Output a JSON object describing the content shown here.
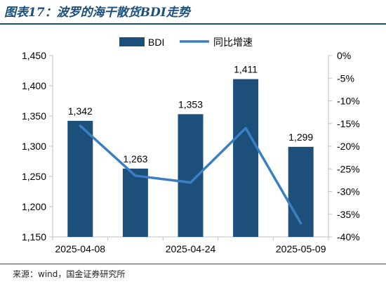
{
  "figure": {
    "title": "图表17：波罗的海干散货BDI走势",
    "source": "来源：wind，国金证券研究所"
  },
  "colors": {
    "bar": "#1c4f7a",
    "line": "#3a7fc4",
    "title": "#1c4f7a",
    "axis": "#bfbfbf",
    "text": "#000000"
  },
  "chart_data": {
    "type": "bar",
    "categories": [
      "2025-04-08",
      "",
      "2025-04-24",
      "",
      "2025-05-09"
    ],
    "x_tick_labels": [
      "2025-04-08",
      "2025-04-24",
      "2025-05-09"
    ],
    "series": [
      {
        "name": "BDI",
        "type": "bar",
        "axis": "left",
        "values": [
          1342,
          1263,
          1353,
          1411,
          1299
        ],
        "data_labels": [
          "1,342",
          "1,263",
          "1,353",
          "1,411",
          "1,299"
        ]
      },
      {
        "name": "同比增速",
        "type": "line",
        "axis": "right",
        "values": [
          -15.5,
          -26.5,
          -28,
          -16,
          -37
        ]
      }
    ],
    "y_left": {
      "ylim": [
        1150,
        1450
      ],
      "ticks": [
        1150,
        1200,
        1250,
        1300,
        1350,
        1400,
        1450
      ],
      "tick_labels": [
        "1,150",
        "1,200",
        "1,250",
        "1,300",
        "1,350",
        "1,400",
        "1,450"
      ]
    },
    "y_right": {
      "ylim": [
        -40,
        0
      ],
      "ticks": [
        -40,
        -35,
        -30,
        -25,
        -20,
        -15,
        -10,
        -5,
        0
      ],
      "tick_labels": [
        "-40%",
        "-35%",
        "-30%",
        "-25%",
        "-20%",
        "-15%",
        "-10%",
        "-5%",
        "0%"
      ]
    },
    "legend": {
      "placement": "top-center",
      "entries": [
        "BDI",
        "同比增速"
      ]
    },
    "grid": false
  }
}
